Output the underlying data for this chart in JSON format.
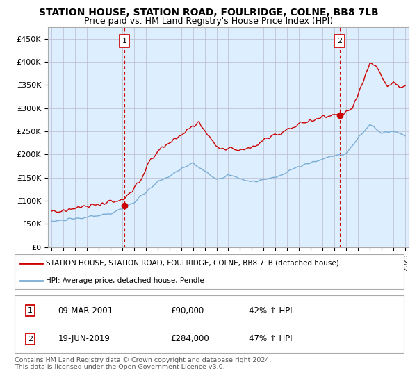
{
  "title": "STATION HOUSE, STATION ROAD, FOULRIDGE, COLNE, BB8 7LB",
  "subtitle": "Price paid vs. HM Land Registry's House Price Index (HPI)",
  "ylabel_ticks": [
    "£0",
    "£50K",
    "£100K",
    "£150K",
    "£200K",
    "£250K",
    "£300K",
    "£350K",
    "£400K",
    "£450K"
  ],
  "ytick_values": [
    0,
    50000,
    100000,
    150000,
    200000,
    250000,
    300000,
    350000,
    400000,
    450000
  ],
  "ylim": [
    0,
    475000
  ],
  "xlim_start": 1994.7,
  "xlim_end": 2025.3,
  "sale1_x": 2001.19,
  "sale1_y": 90000,
  "sale1_label": "1",
  "sale2_x": 2019.46,
  "sale2_y": 284000,
  "sale2_label": "2",
  "red_line_color": "#cc0000",
  "blue_line_color": "#7aadd4",
  "plot_bg_color": "#ddeeff",
  "legend_label_red": "STATION HOUSE, STATION ROAD, FOULRIDGE, COLNE, BB8 7LB (detached house)",
  "legend_label_blue": "HPI: Average price, detached house, Pendle",
  "footer": "Contains HM Land Registry data © Crown copyright and database right 2024.\nThis data is licensed under the Open Government Licence v3.0.",
  "bg_color": "#ffffff",
  "grid_color": "#bbbbcc",
  "title_fontsize": 10,
  "subtitle_fontsize": 9
}
